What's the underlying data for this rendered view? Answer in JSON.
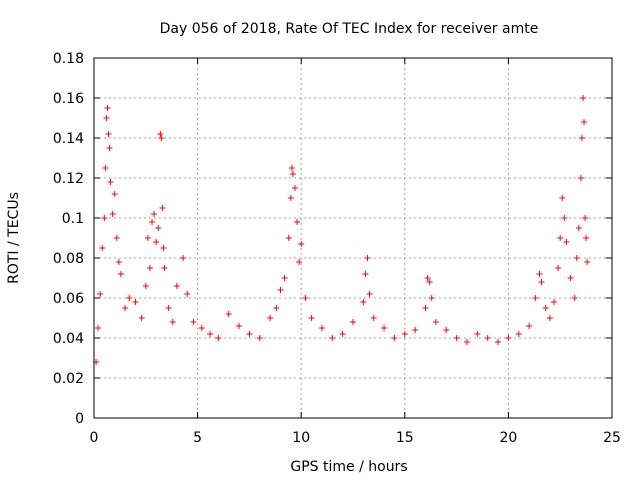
{
  "chart_data": {
    "type": "scatter",
    "title": "Day 056 of 2018, Rate Of TEC Index for receiver amte",
    "xlabel": "GPS time / hours",
    "ylabel": "ROTI / TECUs",
    "xlim": [
      0,
      25
    ],
    "ylim": [
      0,
      0.18
    ],
    "xticks": [
      0,
      5,
      10,
      15,
      20,
      25
    ],
    "yticks": [
      0,
      0.02,
      0.04,
      0.06,
      0.08,
      0.1,
      0.12,
      0.14,
      0.16,
      0.18
    ],
    "xtick_labels": [
      "0",
      "5",
      "10",
      "15",
      "20",
      "25"
    ],
    "ytick_labels": [
      "0",
      "0.02",
      "0.04",
      "0.06",
      "0.08",
      "0.1",
      "0.12",
      "0.14",
      "0.16",
      "0.18"
    ],
    "grid": true,
    "marker": "+",
    "color": "#ff0000",
    "series": [
      {
        "name": "ROTI",
        "points": [
          [
            0.1,
            0.028
          ],
          [
            0.2,
            0.045
          ],
          [
            0.3,
            0.062
          ],
          [
            0.4,
            0.085
          ],
          [
            0.5,
            0.1
          ],
          [
            0.55,
            0.125
          ],
          [
            0.6,
            0.15
          ],
          [
            0.65,
            0.155
          ],
          [
            0.7,
            0.142
          ],
          [
            0.75,
            0.135
          ],
          [
            0.8,
            0.118
          ],
          [
            0.9,
            0.102
          ],
          [
            1.0,
            0.112
          ],
          [
            1.1,
            0.09
          ],
          [
            1.2,
            0.078
          ],
          [
            1.3,
            0.072
          ],
          [
            1.5,
            0.055
          ],
          [
            1.7,
            0.06
          ],
          [
            2.0,
            0.058
          ],
          [
            2.3,
            0.05
          ],
          [
            2.5,
            0.066
          ],
          [
            2.6,
            0.09
          ],
          [
            2.7,
            0.075
          ],
          [
            2.8,
            0.098
          ],
          [
            2.9,
            0.102
          ],
          [
            3.0,
            0.088
          ],
          [
            3.1,
            0.095
          ],
          [
            3.2,
            0.142
          ],
          [
            3.25,
            0.14
          ],
          [
            3.3,
            0.105
          ],
          [
            3.35,
            0.085
          ],
          [
            3.4,
            0.075
          ],
          [
            3.6,
            0.055
          ],
          [
            3.8,
            0.048
          ],
          [
            4.0,
            0.066
          ],
          [
            4.3,
            0.08
          ],
          [
            4.5,
            0.062
          ],
          [
            4.8,
            0.048
          ],
          [
            5.2,
            0.045
          ],
          [
            5.6,
            0.042
          ],
          [
            6.0,
            0.04
          ],
          [
            6.5,
            0.052
          ],
          [
            7.0,
            0.046
          ],
          [
            7.5,
            0.042
          ],
          [
            8.0,
            0.04
          ],
          [
            8.5,
            0.05
          ],
          [
            8.8,
            0.055
          ],
          [
            9.0,
            0.064
          ],
          [
            9.2,
            0.07
          ],
          [
            9.4,
            0.09
          ],
          [
            9.5,
            0.11
          ],
          [
            9.55,
            0.125
          ],
          [
            9.6,
            0.122
          ],
          [
            9.7,
            0.115
          ],
          [
            9.8,
            0.098
          ],
          [
            9.9,
            0.078
          ],
          [
            10.0,
            0.087
          ],
          [
            10.2,
            0.06
          ],
          [
            10.5,
            0.05
          ],
          [
            11.0,
            0.045
          ],
          [
            11.5,
            0.04
          ],
          [
            12.0,
            0.042
          ],
          [
            12.5,
            0.048
          ],
          [
            13.0,
            0.058
          ],
          [
            13.1,
            0.072
          ],
          [
            13.2,
            0.08
          ],
          [
            13.3,
            0.062
          ],
          [
            13.5,
            0.05
          ],
          [
            14.0,
            0.045
          ],
          [
            14.5,
            0.04
          ],
          [
            15.0,
            0.042
          ],
          [
            15.5,
            0.044
          ],
          [
            16.0,
            0.055
          ],
          [
            16.1,
            0.07
          ],
          [
            16.2,
            0.068
          ],
          [
            16.3,
            0.06
          ],
          [
            16.5,
            0.048
          ],
          [
            17.0,
            0.044
          ],
          [
            17.5,
            0.04
          ],
          [
            18.0,
            0.038
          ],
          [
            18.5,
            0.042
          ],
          [
            19.0,
            0.04
          ],
          [
            19.5,
            0.038
          ],
          [
            20.0,
            0.04
          ],
          [
            20.5,
            0.042
          ],
          [
            21.0,
            0.046
          ],
          [
            21.3,
            0.06
          ],
          [
            21.5,
            0.072
          ],
          [
            21.6,
            0.068
          ],
          [
            21.8,
            0.055
          ],
          [
            22.0,
            0.05
          ],
          [
            22.2,
            0.058
          ],
          [
            22.4,
            0.075
          ],
          [
            22.5,
            0.09
          ],
          [
            22.6,
            0.11
          ],
          [
            22.7,
            0.1
          ],
          [
            22.8,
            0.088
          ],
          [
            23.0,
            0.07
          ],
          [
            23.2,
            0.06
          ],
          [
            23.3,
            0.08
          ],
          [
            23.4,
            0.095
          ],
          [
            23.5,
            0.12
          ],
          [
            23.55,
            0.14
          ],
          [
            23.6,
            0.16
          ],
          [
            23.65,
            0.148
          ],
          [
            23.7,
            0.1
          ],
          [
            23.75,
            0.09
          ],
          [
            23.8,
            0.078
          ]
        ]
      }
    ]
  }
}
